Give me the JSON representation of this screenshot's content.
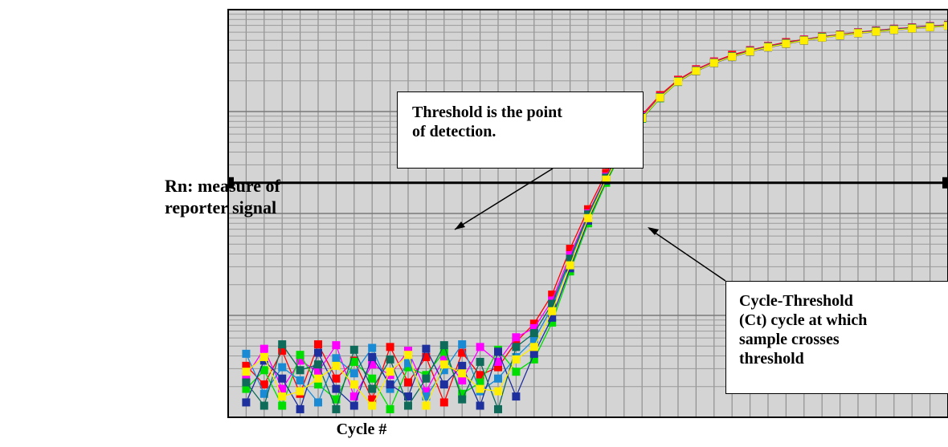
{
  "y_label_lines": [
    "Rn: measure of",
    "reporter signal"
  ],
  "x_label": "Cycle #",
  "annotations": {
    "threshold": {
      "lines": [
        "Threshold is the point",
        "of detection."
      ]
    },
    "ct": {
      "lines": [
        "Cycle-Threshold",
        "(Ct) cycle at which",
        "sample crosses",
        "threshold"
      ]
    }
  },
  "chart_data": {
    "type": "line",
    "title": "",
    "xlabel": "Cycle #",
    "ylabel": "Rn: measure of reporter signal",
    "y_scale": "log",
    "grid": true,
    "legend": "none",
    "xlim": [
      0,
      40
    ],
    "ylim": [
      0.001,
      10
    ],
    "threshold": 0.2,
    "x": [
      1,
      2,
      3,
      4,
      5,
      6,
      7,
      8,
      9,
      10,
      11,
      12,
      13,
      14,
      15,
      16,
      17,
      18,
      19,
      20,
      21,
      22,
      23,
      24,
      25,
      26,
      27,
      28,
      29,
      30,
      31,
      32,
      33,
      34,
      35,
      36,
      37,
      38,
      39,
      40
    ],
    "series": [
      {
        "color": "#ff0000",
        "values": [
          0.0032,
          0.0021,
          0.0045,
          0.0017,
          0.0052,
          0.0024,
          0.0036,
          0.0015,
          0.0049,
          0.0022,
          0.0039,
          0.0014,
          0.0043,
          0.0026,
          0.0031,
          0.0055,
          0.0083,
          0.016,
          0.045,
          0.11,
          0.25,
          0.51,
          0.93,
          1.45,
          2.05,
          2.6,
          3.1,
          3.6,
          4.0,
          4.4,
          4.8,
          5.1,
          5.45,
          5.7,
          6.0,
          6.25,
          6.5,
          6.7,
          6.9,
          7.1
        ]
      },
      {
        "color": "#ff00ff",
        "values": [
          0.0025,
          0.0047,
          0.0019,
          0.0036,
          0.0028,
          0.0051,
          0.0016,
          0.0033,
          0.0026,
          0.0045,
          0.0018,
          0.0038,
          0.0023,
          0.0049,
          0.0035,
          0.0061,
          0.0075,
          0.014,
          0.039,
          0.1,
          0.23,
          0.48,
          0.9,
          1.4,
          2.0,
          2.55,
          3.05,
          3.5,
          3.95,
          4.35,
          4.7,
          5.05,
          5.4,
          5.65,
          5.95,
          6.2,
          6.45,
          6.65,
          6.85,
          7.05
        ]
      },
      {
        "color": "#00dd00",
        "values": [
          0.0019,
          0.0029,
          0.0013,
          0.0041,
          0.0021,
          0.0015,
          0.0035,
          0.0024,
          0.0012,
          0.0031,
          0.0026,
          0.0044,
          0.0017,
          0.0022,
          0.0046,
          0.0028,
          0.0037,
          0.0085,
          0.027,
          0.08,
          0.2,
          0.44,
          0.85,
          1.35,
          1.95,
          2.5,
          3.0,
          3.45,
          3.9,
          4.3,
          4.65,
          5.0,
          5.35,
          5.6,
          5.9,
          6.1,
          6.35,
          6.55,
          6.75,
          6.95
        ]
      },
      {
        "color": "#1a8ad4",
        "values": [
          0.0042,
          0.0017,
          0.0031,
          0.0023,
          0.0014,
          0.0038,
          0.0027,
          0.0048,
          0.0019,
          0.0034,
          0.0016,
          0.0029,
          0.0052,
          0.0018,
          0.0024,
          0.0039,
          0.0058,
          0.012,
          0.034,
          0.095,
          0.22,
          0.46,
          0.87,
          1.38,
          1.98,
          2.52,
          3.02,
          3.48,
          3.92,
          4.32,
          4.68,
          5.02,
          5.38,
          5.62,
          5.92,
          6.15,
          6.4,
          6.6,
          6.8,
          7.0
        ]
      },
      {
        "color": "#1e2f9e",
        "values": [
          0.0014,
          0.0036,
          0.0024,
          0.0012,
          0.0043,
          0.0019,
          0.0013,
          0.0039,
          0.0021,
          0.0016,
          0.0047,
          0.0021,
          0.0032,
          0.0013,
          0.0044,
          0.0016,
          0.0042,
          0.0095,
          0.029,
          0.085,
          0.21,
          0.45,
          0.86,
          1.36,
          1.96,
          2.48,
          2.98,
          3.42,
          3.85,
          4.25,
          4.6,
          4.95,
          5.3,
          5.55,
          5.85,
          6.05,
          6.3,
          6.5,
          6.7,
          6.9
        ]
      },
      {
        "color": "#0e6b5a",
        "values": [
          0.0022,
          0.0013,
          0.0052,
          0.0029,
          0.0033,
          0.0012,
          0.0046,
          0.0019,
          0.0037,
          0.0013,
          0.0024,
          0.0051,
          0.0015,
          0.0035,
          0.0012,
          0.0049,
          0.0067,
          0.013,
          0.036,
          0.098,
          0.225,
          0.47,
          0.88,
          1.39,
          1.99,
          2.53,
          3.03,
          3.49,
          3.93,
          4.33,
          4.69,
          5.03,
          5.39,
          5.63,
          5.93,
          6.17,
          6.42,
          6.62,
          6.82,
          7.02
        ]
      },
      {
        "color": "#ffee00",
        "values": [
          0.0028,
          0.0039,
          0.0016,
          0.0018,
          0.0024,
          0.0032,
          0.0021,
          0.0013,
          0.0028,
          0.0041,
          0.0013,
          0.0033,
          0.0027,
          0.0019,
          0.0018,
          0.0037,
          0.0049,
          0.011,
          0.031,
          0.09,
          0.215,
          0.455,
          0.865,
          1.37,
          1.97,
          2.5,
          3.0,
          3.45,
          3.88,
          4.28,
          4.63,
          4.98,
          5.32,
          5.58,
          5.88,
          6.08,
          6.33,
          6.53,
          6.73,
          6.93
        ]
      }
    ]
  }
}
